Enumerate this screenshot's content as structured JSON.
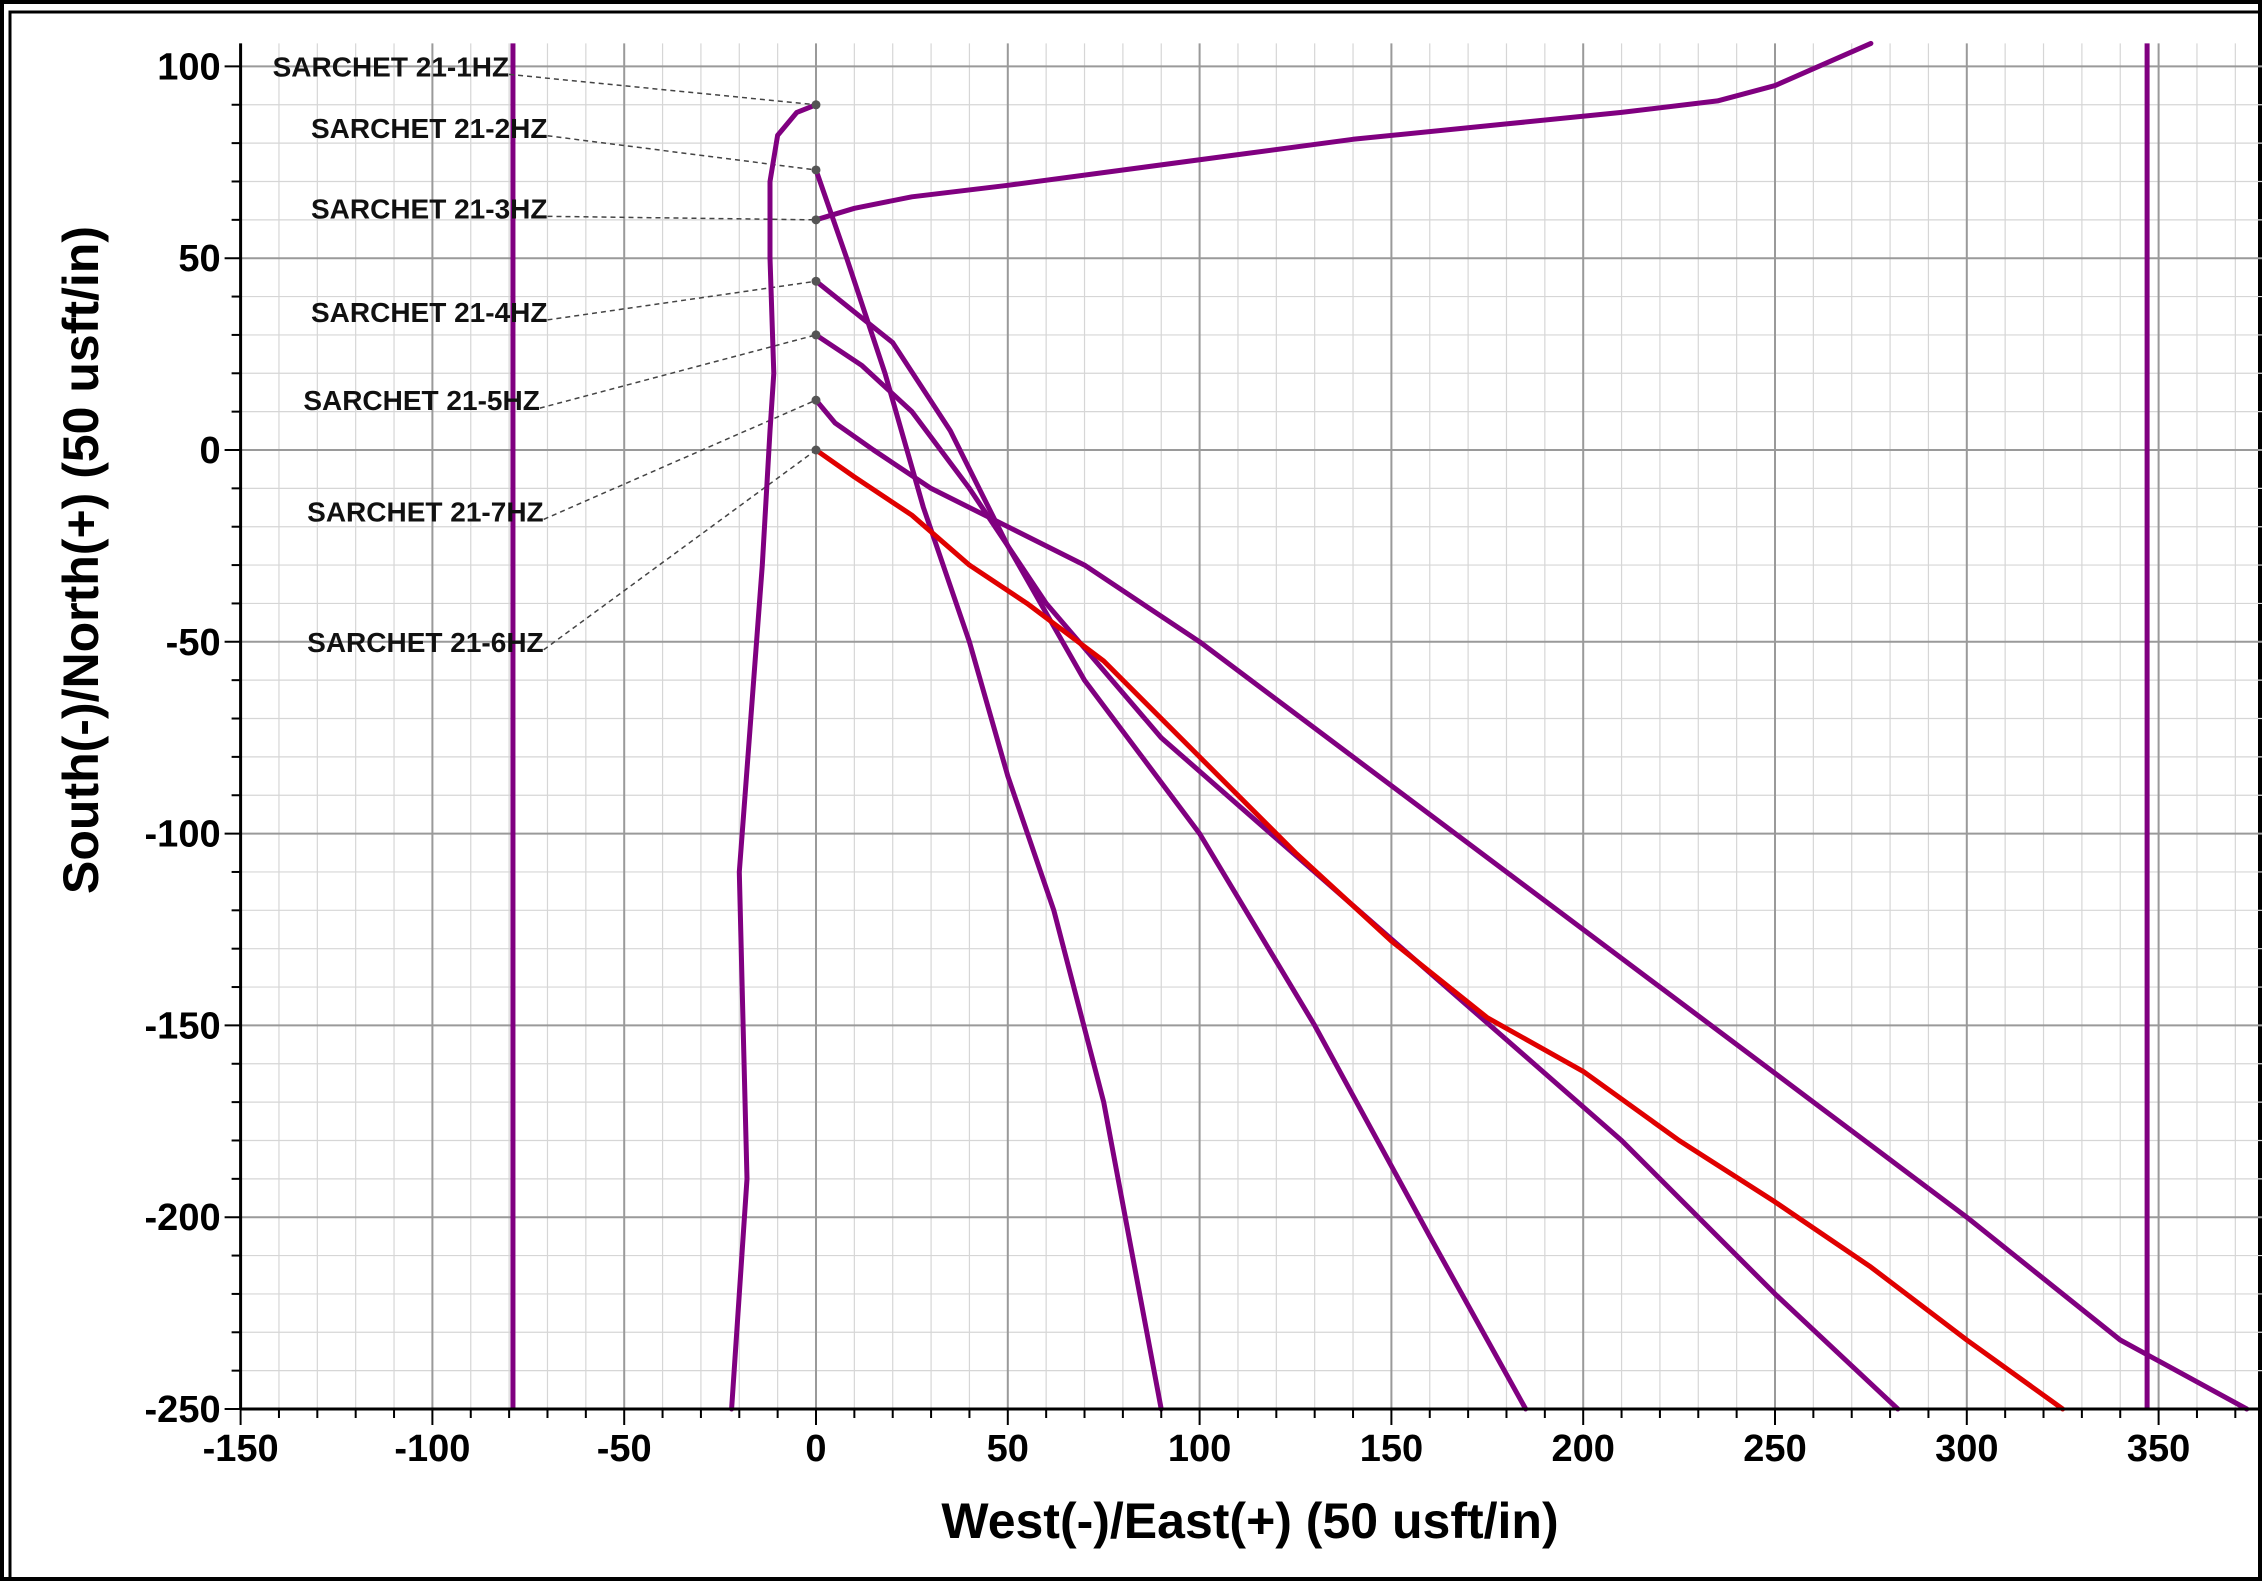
{
  "chart_data": {
    "type": "line",
    "title": "",
    "xlabel": "West(-)/East(+) (50 usft/in)",
    "ylabel": "South(-)/North(+) (50 usft/in)",
    "xlim": [
      -150,
      378
    ],
    "ylim": [
      -250,
      106
    ],
    "xticks": [
      -150,
      -100,
      -50,
      0,
      50,
      100,
      150,
      200,
      250,
      300,
      350
    ],
    "yticks": [
      100,
      50,
      0,
      -50,
      -100,
      -150,
      -200,
      -250
    ],
    "xtick_labels": [
      "-150",
      "-100",
      "-50",
      "0",
      "50",
      "100",
      "150",
      "200",
      "250",
      "300",
      "350"
    ],
    "ytick_labels": [
      "100",
      "50",
      "0",
      "-50",
      "-100",
      "-150",
      "-200",
      "-250"
    ],
    "grid": true,
    "series": [
      {
        "name": "SARCHET 21-1HZ",
        "color": "#800080",
        "points": [
          [
            0,
            90
          ],
          [
            -5,
            88
          ],
          [
            -10,
            82
          ],
          [
            -12,
            70
          ],
          [
            -12,
            50
          ],
          [
            -11,
            20
          ],
          [
            -12,
            5
          ],
          [
            -14,
            -30
          ],
          [
            -17,
            -70
          ],
          [
            -20,
            -110
          ],
          [
            -19,
            -150
          ],
          [
            -18,
            -190
          ],
          [
            -20,
            -220
          ],
          [
            -22,
            -250
          ]
        ],
        "label_pos": [
          -80,
          100
        ],
        "label_anchor": "end"
      },
      {
        "name": "SARCHET 21-2HZ",
        "color": "#800080",
        "points": [
          [
            0,
            73
          ],
          [
            8,
            50
          ],
          [
            18,
            20
          ],
          [
            28,
            -15
          ],
          [
            40,
            -50
          ],
          [
            50,
            -85
          ],
          [
            62,
            -120
          ],
          [
            75,
            -170
          ],
          [
            90,
            -250
          ]
        ],
        "label_pos": [
          -70,
          84
        ],
        "label_anchor": "end"
      },
      {
        "name": "SARCHET 21-3HZ",
        "color": "#800080",
        "points": [
          [
            0,
            60
          ],
          [
            10,
            63
          ],
          [
            25,
            66
          ],
          [
            50,
            69
          ],
          [
            80,
            73
          ],
          [
            110,
            77
          ],
          [
            140,
            81
          ],
          [
            180,
            85
          ],
          [
            210,
            88
          ],
          [
            235,
            91
          ],
          [
            250,
            95
          ],
          [
            275,
            106
          ]
        ],
        "label_pos": [
          -70,
          63
        ],
        "label_anchor": "end"
      },
      {
        "name": "SARCHET 21-4HZ",
        "color": "#800080",
        "points": [
          [
            0,
            44
          ],
          [
            10,
            36
          ],
          [
            20,
            28
          ],
          [
            35,
            5
          ],
          [
            50,
            -25
          ],
          [
            70,
            -60
          ],
          [
            100,
            -100
          ],
          [
            130,
            -150
          ],
          [
            160,
            -205
          ],
          [
            185,
            -250
          ]
        ],
        "label_pos": [
          -70,
          36
        ],
        "label_anchor": "end"
      },
      {
        "name": "SARCHET 21-5HZ",
        "color": "#800080",
        "points": [
          [
            0,
            30
          ],
          [
            12,
            22
          ],
          [
            25,
            10
          ],
          [
            40,
            -10
          ],
          [
            60,
            -40
          ],
          [
            90,
            -75
          ],
          [
            130,
            -110
          ],
          [
            170,
            -145
          ],
          [
            210,
            -180
          ],
          [
            250,
            -220
          ],
          [
            282,
            -250
          ]
        ],
        "label_pos": [
          -72,
          13
        ],
        "label_anchor": "end"
      },
      {
        "name": "SARCHET 21-7HZ",
        "color": "#800080",
        "points": [
          [
            0,
            13
          ],
          [
            5,
            7
          ],
          [
            15,
            0
          ],
          [
            30,
            -10
          ],
          [
            50,
            -20
          ],
          [
            70,
            -30
          ],
          [
            100,
            -50
          ],
          [
            140,
            -80
          ],
          [
            180,
            -110
          ],
          [
            220,
            -140
          ],
          [
            260,
            -170
          ],
          [
            300,
            -200
          ],
          [
            340,
            -232
          ],
          [
            373,
            -250
          ]
        ],
        "label_pos": [
          -71,
          -16
        ],
        "label_anchor": "end"
      },
      {
        "name": "SARCHET 21-6HZ",
        "color": "#e00000",
        "points": [
          [
            0,
            0
          ],
          [
            10,
            -7
          ],
          [
            25,
            -17
          ],
          [
            40,
            -30
          ],
          [
            55,
            -40
          ],
          [
            75,
            -55
          ],
          [
            100,
            -80
          ],
          [
            125,
            -105
          ],
          [
            150,
            -128
          ],
          [
            175,
            -148
          ],
          [
            200,
            -162
          ],
          [
            225,
            -180
          ],
          [
            250,
            -196
          ],
          [
            275,
            -213
          ],
          [
            300,
            -232
          ],
          [
            325,
            -250
          ]
        ],
        "label_pos": [
          -71,
          -50
        ],
        "label_anchor": "end"
      }
    ],
    "reference_lines": [
      {
        "type": "vertical",
        "x": -79,
        "color": "#800080"
      },
      {
        "type": "vertical",
        "x": 347,
        "color": "#800080"
      }
    ]
  }
}
